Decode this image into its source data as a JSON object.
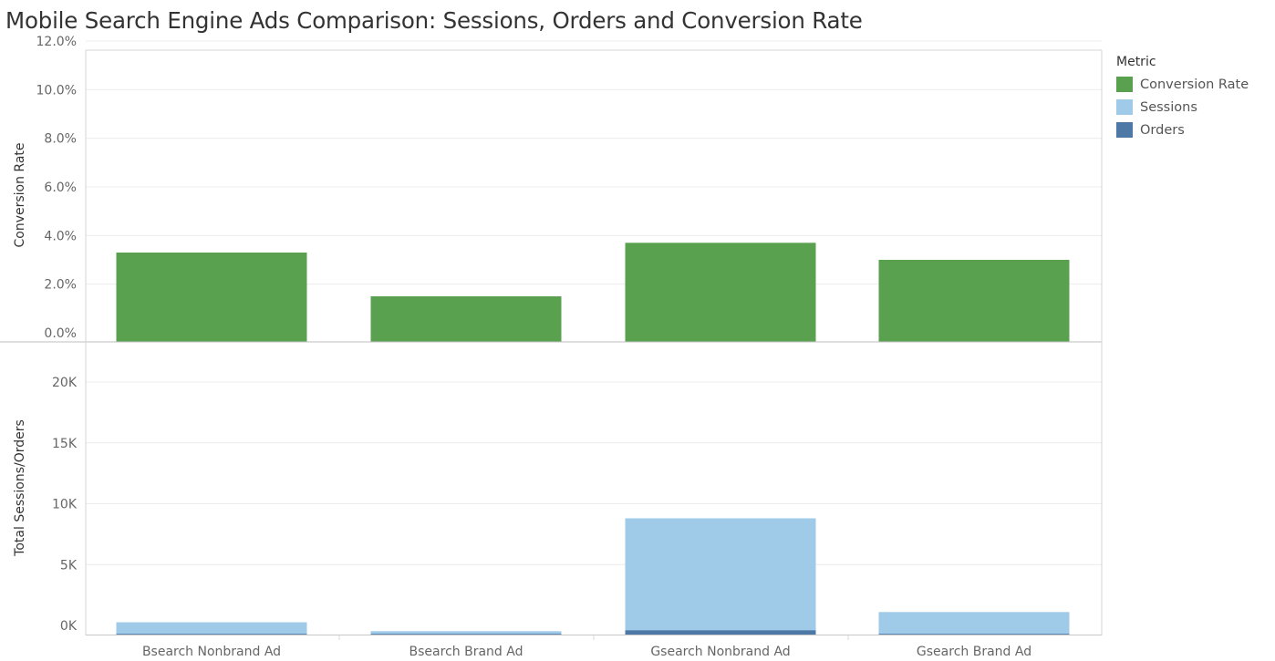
{
  "title": "Mobile Search Engine Ads Comparison: Sessions, Orders and Conversion Rate",
  "legend": {
    "title": "Metric",
    "items": [
      {
        "label": "Conversion Rate",
        "color": "#59a14f"
      },
      {
        "label": "Sessions",
        "color": "#a0cbe8"
      },
      {
        "label": "Orders",
        "color": "#4e79a7"
      }
    ]
  },
  "chart_data": [
    {
      "type": "bar",
      "ylabel": "Conversion Rate",
      "ylim": [
        0,
        12
      ],
      "yticks": [
        "12.0%",
        "10.0%",
        "8.0%",
        "6.0%",
        "4.0%",
        "2.0%",
        "0.0%"
      ],
      "categories": [
        "Bsearch Nonbrand Ad",
        "Bsearch Brand Ad",
        "Gsearch Nonbrand Ad",
        "Gsearch Brand Ad"
      ],
      "series": [
        {
          "name": "Conversion Rate",
          "values": [
            3.3,
            1.5,
            3.7,
            3.0
          ],
          "color": "#59a14f"
        }
      ],
      "grid": true
    },
    {
      "type": "bar",
      "ylabel": "Total Sessions/Orders",
      "ylim": [
        0,
        20000
      ],
      "yticks": [
        "20K",
        "15K",
        "10K",
        "5K",
        "0K"
      ],
      "categories": [
        "Bsearch Nonbrand Ad",
        "Bsearch Brand Ad",
        "Gsearch Nonbrand Ad",
        "Gsearch Brand Ad"
      ],
      "series": [
        {
          "name": "Sessions",
          "values": [
            860,
            130,
            9400,
            1700
          ],
          "color": "#a0cbe8"
        },
        {
          "name": "Orders",
          "values": [
            28,
            2,
            350,
            50
          ],
          "color": "#4e79a7"
        }
      ],
      "grid": true
    }
  ]
}
